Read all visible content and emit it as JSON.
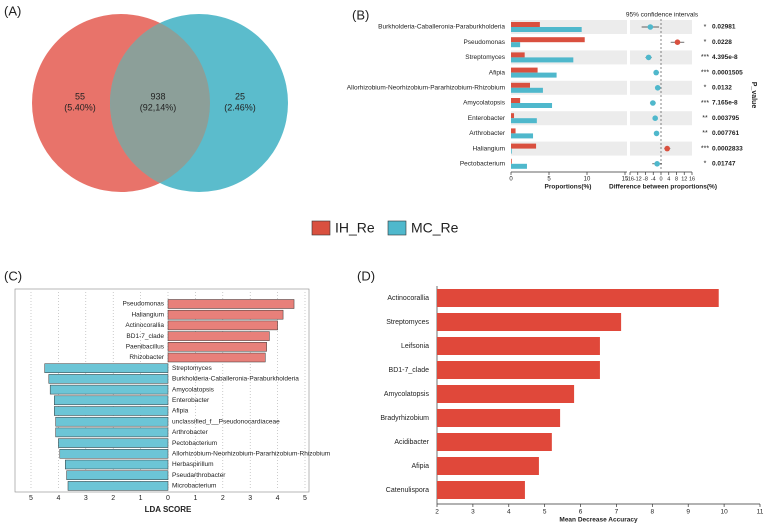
{
  "chart_data": [
    {
      "type": "venn",
      "panel": "(A)",
      "values": [
        55,
        938,
        25
      ],
      "percent_labels": [
        "(5.40%)",
        "(92,14%)",
        "(2.46%)"
      ],
      "colors": [
        "#e8736a",
        "#5bbccc",
        "#8c9f99"
      ]
    },
    {
      "type": "extended_error_bar",
      "panel": "(B)",
      "categories": [
        "Burkholderia-Caballeronia-Paraburkholderia",
        "Pseudomonas",
        "Streptomyces",
        "Afipia",
        "Allorhizobium-Neorhizobium-Pararhizobium-Rhizobium",
        "Amycolatopsis",
        "Enterobacter",
        "Arthrobacter",
        "Haliangium",
        "Pectobacterium"
      ],
      "series": [
        {
          "name": "IH_Re",
          "color": "#d9503f",
          "values": [
            3.8,
            9.7,
            1.8,
            3.5,
            2.5,
            1.2,
            0.4,
            0.6,
            3.3,
            0.1
          ]
        },
        {
          "name": "MC_Re",
          "color": "#4fb8cc",
          "values": [
            9.3,
            1.2,
            8.2,
            6.0,
            4.2,
            5.4,
            3.4,
            2.9,
            0.1,
            2.1
          ]
        }
      ],
      "differences": [
        -5.5,
        8.5,
        -6.4,
        -2.5,
        -1.7,
        -4.2,
        -3.0,
        -2.3,
        3.2,
        -2.0
      ],
      "ci_low": [
        -10,
        5,
        -8,
        -3.8,
        -2.6,
        -5.7,
        -4.2,
        -3.3,
        1.7,
        -4.5
      ],
      "ci_high": [
        -1,
        12,
        -4.8,
        -1,
        -0.8,
        -2.7,
        -1.8,
        -1.2,
        4.8,
        0.5
      ],
      "p_values": [
        "0.02981",
        "0.0228",
        "4.395e-8",
        "0.0001505",
        "0.0132",
        "7.165e-8",
        "0.003795",
        "0.007761",
        "0.0002833",
        "0.01747"
      ],
      "significance": [
        "*",
        "*",
        "***",
        "***",
        "*",
        "***",
        "**",
        "**",
        "***",
        "*"
      ],
      "xlim": [
        0,
        15
      ],
      "xticks": [
        0,
        5,
        10,
        15
      ],
      "diff_lim": [
        -16,
        16
      ],
      "diff_ticks": [
        -16,
        -12,
        -8,
        -4,
        0,
        4,
        8,
        12,
        16
      ],
      "xlabel": "Proportions(%)",
      "diff_label": "Difference between proportions(%)",
      "ci_title": "95% confidence intervals",
      "p_label": "P_value"
    },
    {
      "type": "lda",
      "panel": "(C)",
      "categories": [
        "Pseudomonas",
        "Haliangium",
        "Actinocorallia",
        "BD1-7_clade",
        "Paenibacillus",
        "Rhizobacter",
        "Streptomyces",
        "Burkholderia-Caballeronia-Paraburkholderia",
        "Amycolatopsis",
        "Enterobacter",
        "Afipia",
        "unclassified_f__Pseudonocardiaceae",
        "Arthrobacter",
        "Pectobacterium",
        "Allorhizobium-Neorhizobium-Pararhizobium-Rhizobium",
        "Herbaspirillum",
        "Pseudarthrobacter",
        "Microbacterium"
      ],
      "values": [
        4.6,
        4.2,
        4.0,
        3.7,
        3.6,
        3.55,
        -4.5,
        -4.35,
        -4.3,
        -4.15,
        -4.15,
        -4.1,
        -4.1,
        -4.0,
        -3.95,
        -3.75,
        -3.7,
        -3.65
      ],
      "pos_color": "#e8807a",
      "neg_color": "#6cc5d6",
      "xlim": [
        -5,
        5
      ],
      "xticks": [
        {
          "value": -5,
          "label": "5"
        },
        {
          "value": -4,
          "label": "4"
        },
        {
          "value": -3,
          "label": "3"
        },
        {
          "value": -2,
          "label": "2"
        },
        {
          "value": -1,
          "label": "1"
        },
        0,
        1,
        2,
        3,
        4,
        5
      ],
      "xlabel": "LDA SCORE"
    },
    {
      "type": "hbar",
      "panel": "(D)",
      "categories": [
        "Actinocorallia",
        "Streptomyces",
        "Leifsonia",
        "BD1-7_clade",
        "Amycolatopsis",
        "Bradyrhizobium",
        "Acidibacter",
        "Afipia",
        "Catenulispora"
      ],
      "values": [
        9.85,
        7.13,
        6.54,
        6.54,
        5.82,
        5.43,
        5.2,
        4.84,
        4.45
      ],
      "color": "#e0483a",
      "xlim": [
        2,
        11
      ],
      "xticks": [
        2,
        3,
        4,
        5,
        6,
        7,
        8,
        9,
        10,
        11
      ],
      "xlabel": "Mean Decrease Accuracy"
    }
  ]
}
